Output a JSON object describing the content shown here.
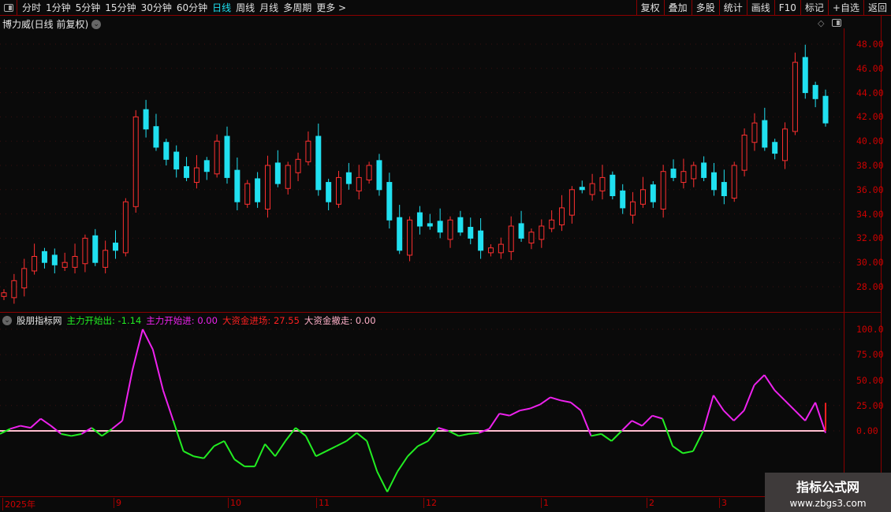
{
  "toolbar": {
    "periods": [
      "分时",
      "1分钟",
      "5分钟",
      "15分钟",
      "30分钟",
      "60分钟",
      "日线",
      "周线",
      "月线",
      "多周期",
      "更多 >"
    ],
    "active_period": "日线",
    "right_buttons": [
      "复权",
      "叠加",
      "多股",
      "统计",
      "画线",
      "F10",
      "标记",
      "+自选",
      "返回"
    ]
  },
  "main_chart": {
    "title": "博力威(日线 前复权)",
    "price_axis": [
      "48.00",
      "46.00",
      "44.00",
      "42.00",
      "40.00",
      "38.00",
      "36.00",
      "34.00",
      "32.00",
      "30.00",
      "28.00"
    ],
    "colors": {
      "up": "#ff3030",
      "down": "#20e0f0",
      "axis": "#cc0000"
    },
    "closes": [
      27.5,
      28.5,
      29.5,
      30.5,
      30,
      29.8,
      30,
      30.5,
      32,
      30,
      31,
      31,
      35,
      42,
      41,
      39.5,
      38.5,
      37.7,
      37,
      37.8,
      37.5,
      40,
      37,
      35,
      36.5,
      35,
      38,
      36.5,
      38,
      38.5,
      40,
      36,
      35,
      37,
      36.5,
      37,
      38,
      36,
      33.5,
      31,
      33.5,
      33,
      33,
      32.5,
      33.5,
      32.5,
      32,
      31,
      31.2,
      31.5,
      33,
      32,
      32.5,
      33,
      33.5,
      34.5,
      36,
      36,
      36.5,
      37,
      35.5,
      34.5,
      35,
      36,
      35,
      37.5,
      37,
      37.5,
      38,
      37,
      36,
      35.5,
      38,
      40.5,
      41.5,
      39.5,
      39,
      41,
      46.5,
      44,
      43.5,
      41.5
    ]
  },
  "indicator": {
    "name": "股朋指标网",
    "legend": [
      {
        "label": "主力开始出: -1.14",
        "color": "#22ee22"
      },
      {
        "label": "主力开始进: 0.00",
        "color": "#ee22ee"
      },
      {
        "label": "大资金进场: 27.55",
        "color": "#ff2020"
      },
      {
        "label": "大资金撤走: 0.00",
        "color": "#ffb0c8"
      }
    ],
    "axis": [
      "100.0",
      "75.00",
      "50.00",
      "25.00",
      "0.00"
    ],
    "values": [
      -3,
      2,
      5,
      3,
      12,
      5,
      -3,
      -5,
      -3,
      3,
      -5,
      2,
      10,
      60,
      100,
      80,
      40,
      10,
      -20,
      -25,
      -27,
      -15,
      -10,
      -28,
      -35,
      -35,
      -13,
      -25,
      -10,
      3,
      -5,
      -25,
      -20,
      -15,
      -10,
      -2,
      -10,
      -40,
      -60,
      -40,
      -25,
      -15,
      -10,
      3,
      0,
      -5,
      -3,
      -2,
      2,
      17,
      15,
      20,
      22,
      26,
      33,
      30,
      28,
      20,
      -5,
      -3,
      -10,
      0,
      10,
      5,
      15,
      12,
      -15,
      -22,
      -20,
      0,
      35,
      20,
      10,
      20,
      45,
      55,
      40,
      30,
      20,
      10,
      28,
      -2
    ]
  },
  "dates": [
    "2025年",
    "9",
    "10",
    "11",
    "12",
    "1",
    "2",
    "3"
  ],
  "watermark": {
    "line1": "指标公式网",
    "line2": "www.zbgs3.com"
  }
}
